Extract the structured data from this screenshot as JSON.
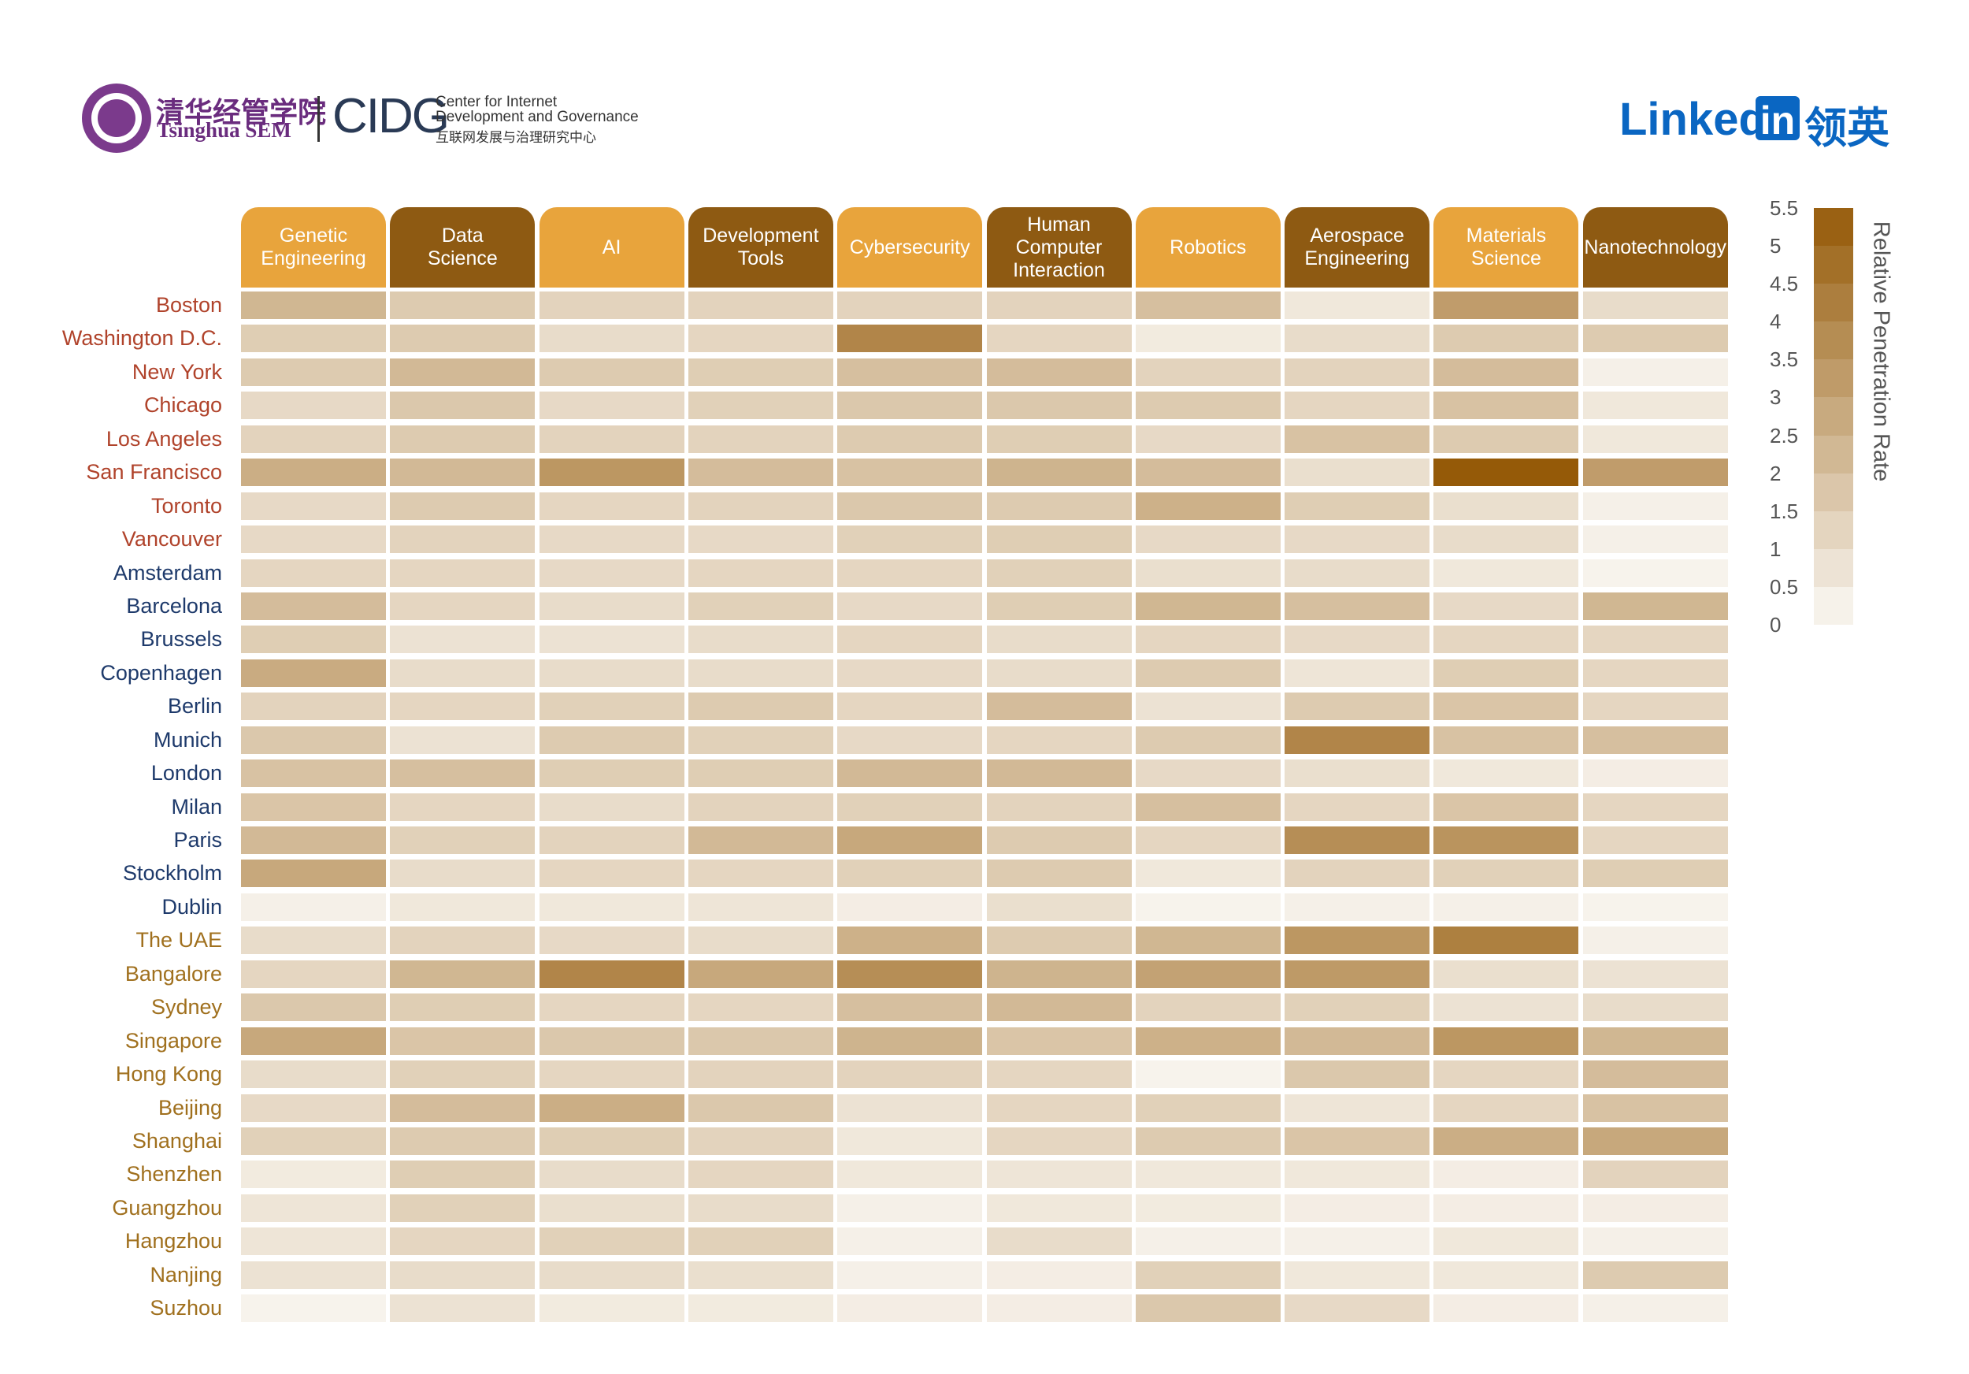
{
  "logos": {
    "tsinghua_cn": "清华经管学院",
    "tsinghua_en": "Tsinghua SEM",
    "cidg": "CIDG",
    "cidg_line1": "Center for Internet",
    "cidg_line2": "Development and Governance",
    "cidg_cn": "互联网发展与治理研究中心",
    "linkedin_text": "Linked",
    "linkedin_box": "in",
    "linkedin_cn": "领英"
  },
  "chart_data": {
    "type": "heatmap",
    "columns": [
      "Genetic\nEngineering",
      "Data\nScience",
      "AI",
      "Development\nTools",
      "Cybersecurity",
      "Human\nComputer\nInteraction",
      "Robotics",
      "Aerospace\nEngineering",
      "Materials\nScience",
      "Nanotechnology"
    ],
    "column_header_colors": [
      "#e8a43c",
      "#8e5a12",
      "#e8a43c",
      "#8e5a12",
      "#e8a43c",
      "#8e5a12",
      "#e8a43c",
      "#8e5a12",
      "#e8a43c",
      "#8e5a12"
    ],
    "rows": [
      "Boston",
      "Washington D.C.",
      "New York",
      "Chicago",
      "Los Angeles",
      "San Francisco",
      "Toronto",
      "Vancouver",
      "Amsterdam",
      "Barcelona",
      "Brussels",
      "Copenhagen",
      "Berlin",
      "Munich",
      "London",
      "Milan",
      "Paris",
      "Stockholm",
      "Dublin",
      "The UAE",
      "Bangalore",
      "Sydney",
      "Singapore",
      "Hong Kong",
      "Beijing",
      "Shanghai",
      "Shenzhen",
      "Guangzhou",
      "Hangzhou",
      "Nanjing",
      "Suzhou"
    ],
    "row_label_colors": [
      "#b0432b",
      "#b0432b",
      "#b0432b",
      "#b0432b",
      "#b0432b",
      "#b0432b",
      "#b0432b",
      "#b0432b",
      "#1e3a6b",
      "#1e3a6b",
      "#1e3a6b",
      "#1e3a6b",
      "#1e3a6b",
      "#1e3a6b",
      "#1e3a6b",
      "#1e3a6b",
      "#1e3a6b",
      "#1e3a6b",
      "#1e3a6b",
      "#a0701e",
      "#a0701e",
      "#a0701e",
      "#a0701e",
      "#a0701e",
      "#a0701e",
      "#a0701e",
      "#a0701e",
      "#a0701e",
      "#a0701e",
      "#a0701e",
      "#a0701e"
    ],
    "values": [
      [
        2.3,
        1.6,
        1.3,
        1.3,
        1.3,
        1.3,
        2.0,
        0.6,
        3.2,
        1.0
      ],
      [
        1.5,
        1.6,
        1.0,
        1.2,
        4.0,
        1.2,
        0.5,
        1.0,
        1.6,
        1.6
      ],
      [
        1.6,
        2.2,
        1.6,
        1.5,
        2.0,
        2.1,
        1.3,
        1.3,
        2.1,
        0.3
      ],
      [
        1.1,
        1.7,
        1.1,
        1.4,
        1.7,
        1.7,
        1.6,
        1.2,
        1.9,
        0.6
      ],
      [
        1.3,
        1.6,
        1.3,
        1.3,
        1.6,
        1.5,
        1.1,
        1.9,
        1.6,
        0.6
      ],
      [
        2.6,
        2.2,
        3.4,
        2.1,
        1.9,
        2.4,
        2.1,
        0.9,
        5.5,
        3.2
      ],
      [
        1.1,
        1.6,
        1.2,
        1.3,
        1.7,
        1.6,
        2.5,
        1.5,
        0.9,
        0.3
      ],
      [
        1.1,
        1.3,
        1.1,
        1.1,
        1.4,
        1.5,
        1.1,
        1.1,
        1.0,
        0.3
      ],
      [
        1.2,
        1.2,
        1.1,
        1.2,
        1.2,
        1.4,
        0.9,
        1.0,
        0.6,
        0.2
      ],
      [
        2.1,
        1.2,
        1.0,
        1.4,
        1.1,
        1.5,
        2.3,
        2.0,
        1.1,
        2.3
      ],
      [
        1.5,
        0.8,
        0.8,
        1.0,
        1.2,
        1.0,
        1.2,
        1.1,
        1.2,
        1.2
      ],
      [
        2.7,
        1.0,
        1.0,
        1.0,
        1.1,
        1.0,
        1.6,
        0.7,
        1.5,
        1.2
      ],
      [
        1.3,
        1.2,
        1.4,
        1.6,
        1.2,
        2.1,
        0.8,
        1.6,
        1.8,
        1.2
      ],
      [
        1.7,
        0.8,
        1.6,
        1.4,
        1.1,
        1.2,
        1.6,
        4.0,
        1.9,
        2.0
      ],
      [
        1.9,
        2.0,
        1.5,
        1.5,
        2.2,
        2.2,
        1.1,
        0.9,
        0.6,
        0.4
      ],
      [
        1.8,
        1.2,
        1.0,
        1.3,
        1.4,
        1.3,
        2.0,
        1.2,
        1.8,
        1.2
      ],
      [
        2.2,
        1.4,
        1.3,
        2.2,
        2.8,
        1.6,
        1.2,
        3.7,
        3.5,
        1.2
      ],
      [
        2.8,
        1.0,
        1.2,
        1.2,
        1.4,
        1.6,
        0.6,
        1.3,
        1.4,
        1.5
      ],
      [
        0.3,
        0.6,
        0.6,
        0.7,
        0.4,
        0.9,
        0.2,
        0.3,
        0.3,
        0.2
      ],
      [
        1.0,
        1.3,
        1.1,
        1.0,
        2.5,
        1.6,
        2.3,
        3.4,
        4.2,
        0.3
      ],
      [
        1.2,
        2.3,
        4.0,
        2.8,
        3.7,
        2.4,
        3.0,
        3.3,
        0.9,
        0.8
      ],
      [
        1.7,
        1.5,
        1.2,
        1.2,
        2.0,
        2.2,
        1.3,
        1.4,
        0.8,
        1.0
      ],
      [
        2.8,
        1.8,
        1.7,
        1.7,
        2.4,
        1.8,
        2.5,
        2.2,
        3.4,
        2.3
      ],
      [
        1.0,
        1.4,
        1.2,
        1.3,
        1.3,
        1.2,
        0.2,
        1.7,
        1.2,
        2.1
      ],
      [
        1.1,
        2.1,
        2.6,
        1.7,
        0.8,
        1.2,
        1.4,
        0.7,
        1.2,
        1.9
      ],
      [
        1.4,
        1.6,
        1.5,
        1.3,
        0.6,
        1.2,
        1.6,
        1.8,
        2.6,
        2.8
      ],
      [
        0.5,
        1.5,
        1.0,
        1.2,
        0.6,
        0.7,
        0.6,
        0.6,
        0.4,
        1.3
      ],
      [
        0.7,
        1.4,
        0.9,
        1.0,
        0.3,
        0.6,
        0.5,
        0.4,
        0.4,
        0.4
      ],
      [
        0.7,
        1.2,
        1.4,
        1.4,
        0.3,
        1.0,
        0.3,
        0.3,
        0.6,
        0.3
      ],
      [
        0.8,
        1.0,
        1.0,
        0.9,
        0.3,
        0.4,
        1.4,
        0.6,
        0.6,
        1.6
      ],
      [
        0.2,
        0.8,
        0.5,
        0.5,
        0.4,
        0.4,
        1.7,
        1.1,
        0.4,
        0.3
      ]
    ],
    "zlim": [
      0,
      5.5
    ],
    "colorscale": [
      "#fbf9f5",
      "#955a08"
    ],
    "colorbar_ticks": [
      0,
      0.5,
      1,
      1.5,
      2,
      2.5,
      3,
      3.5,
      4,
      4.5,
      5,
      5.5
    ],
    "colorbar_label": "Relative Penetration Rate"
  }
}
